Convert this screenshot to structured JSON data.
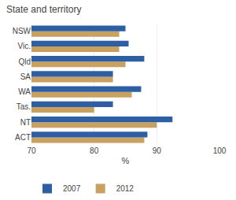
{
  "chart_data": {
    "type": "bar",
    "orientation": "horizontal",
    "title": "State and territory",
    "categories": [
      "ACT",
      "NT",
      "Tas.",
      "WA",
      "SA",
      "Qld",
      "Vic.",
      "NSW"
    ],
    "series": [
      {
        "name": "2007",
        "color": "#2E5FA3",
        "values": [
          88.5,
          92.5,
          83.0,
          87.5,
          83.0,
          88.0,
          85.5,
          85.0
        ]
      },
      {
        "name": "2012",
        "color": "#C8A060",
        "values": [
          88.0,
          90.0,
          80.0,
          86.0,
          83.0,
          85.0,
          84.0,
          84.0
        ]
      }
    ],
    "xlabel": "%",
    "xlim": [
      70,
      100
    ],
    "xticks": [
      70,
      80,
      90,
      100
    ],
    "grid": true,
    "legend": "bottom"
  }
}
